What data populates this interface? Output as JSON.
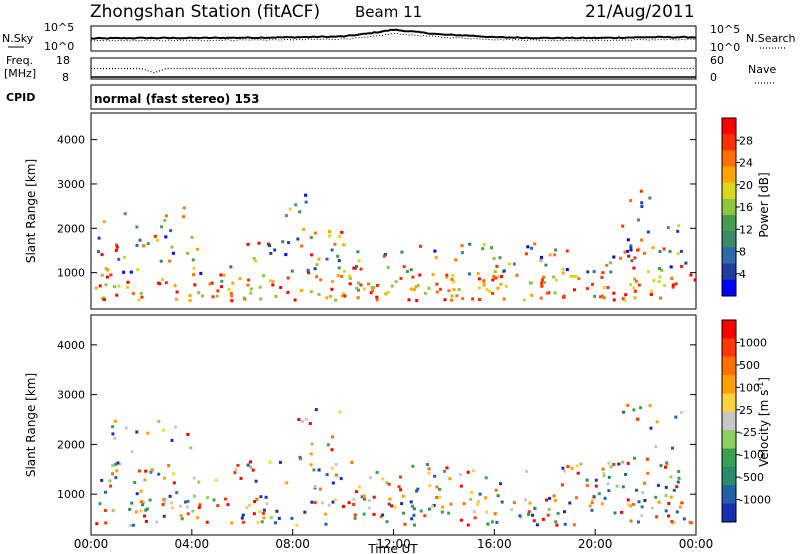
{
  "header": {
    "title": "Zhongshan Station (fitACF)",
    "beam": "Beam 11",
    "date": "21/Aug/2011",
    "mode_label": "normal (fast stereo) 153"
  },
  "chart_data": [
    {
      "type": "line",
      "panel": "noise",
      "left_label": "N.Sky",
      "right_label": "N.Search",
      "left_ticks": [
        "10^5",
        "10^0"
      ],
      "right_ticks": [
        "10^5",
        "10^0"
      ],
      "x": [
        0,
        2,
        4,
        6,
        8,
        10,
        11,
        12,
        13,
        14,
        15,
        16,
        18,
        20,
        22,
        24
      ],
      "series": [
        {
          "name": "N.Sky",
          "style": "solid",
          "values": [
            0.5,
            0.52,
            0.52,
            0.53,
            0.55,
            0.58,
            0.7,
            0.85,
            0.75,
            0.65,
            0.62,
            0.55,
            0.52,
            0.52,
            0.55,
            0.55
          ]
        },
        {
          "name": "N.Search",
          "style": "dotted",
          "values": [
            0.4,
            0.42,
            0.42,
            0.44,
            0.45,
            0.48,
            0.55,
            0.7,
            0.62,
            0.55,
            0.5,
            0.46,
            0.43,
            0.42,
            0.45,
            0.45
          ]
        }
      ]
    },
    {
      "type": "line",
      "panel": "frequency",
      "left_label": "Freq.",
      "left_unit": "[MHz]",
      "left_ticks": [
        "18",
        "8"
      ],
      "right_label": "Nave",
      "right_ticks": [
        "60",
        "0"
      ],
      "x": [
        0,
        2,
        2.5,
        3,
        4,
        8,
        12,
        16,
        20,
        24
      ],
      "series": [
        {
          "name": "Nave",
          "style": "dotted",
          "values": [
            0.5,
            0.5,
            0.3,
            0.5,
            0.5,
            0.5,
            0.5,
            0.5,
            0.5,
            0.5
          ]
        }
      ],
      "cpid_label": "CPID"
    },
    {
      "type": "heatmap",
      "panel": "power",
      "ylabel": "Slant Range [km]",
      "yticks": [
        1000,
        2000,
        3000,
        4000
      ],
      "ylim": [
        180,
        4600
      ],
      "xlim": [
        0,
        24
      ],
      "colorbar": {
        "label": "Power [dB]",
        "ticks": [
          "4",
          "8",
          "12",
          "16",
          "20",
          "24",
          "28"
        ],
        "colors": [
          "#0000ff",
          "#1e3fa0",
          "#2e6aa8",
          "#3a8a68",
          "#4a9a50",
          "#8ec63f",
          "#d8d820",
          "#ffa500",
          "#ff7000",
          "#ff3000",
          "#ff0000"
        ]
      }
    },
    {
      "type": "heatmap",
      "panel": "velocity",
      "ylabel": "Slant Range [km]",
      "yticks": [
        1000,
        2000,
        3000,
        4000
      ],
      "ylim": [
        180,
        4600
      ],
      "xlim": [
        0,
        24
      ],
      "xticks": [
        "00:00",
        "04:00",
        "08:00",
        "12:00",
        "16:00",
        "20:00",
        "00:00"
      ],
      "xlabel": "Time UT",
      "colorbar": {
        "label": "Velocity [m s",
        "label_sup": "-1",
        "label_end": "]",
        "ticks": [
          "1000",
          "500",
          "100",
          "25",
          "-25",
          "-100",
          "-500",
          "-1000"
        ],
        "colors": [
          "#1a2fb0",
          "#2060a8",
          "#2a8a6a",
          "#3aa050",
          "#8ed060",
          "#c8c8c8",
          "#ffd040",
          "#ffa000",
          "#ff7000",
          "#ff3800",
          "#ff0000"
        ]
      }
    }
  ]
}
